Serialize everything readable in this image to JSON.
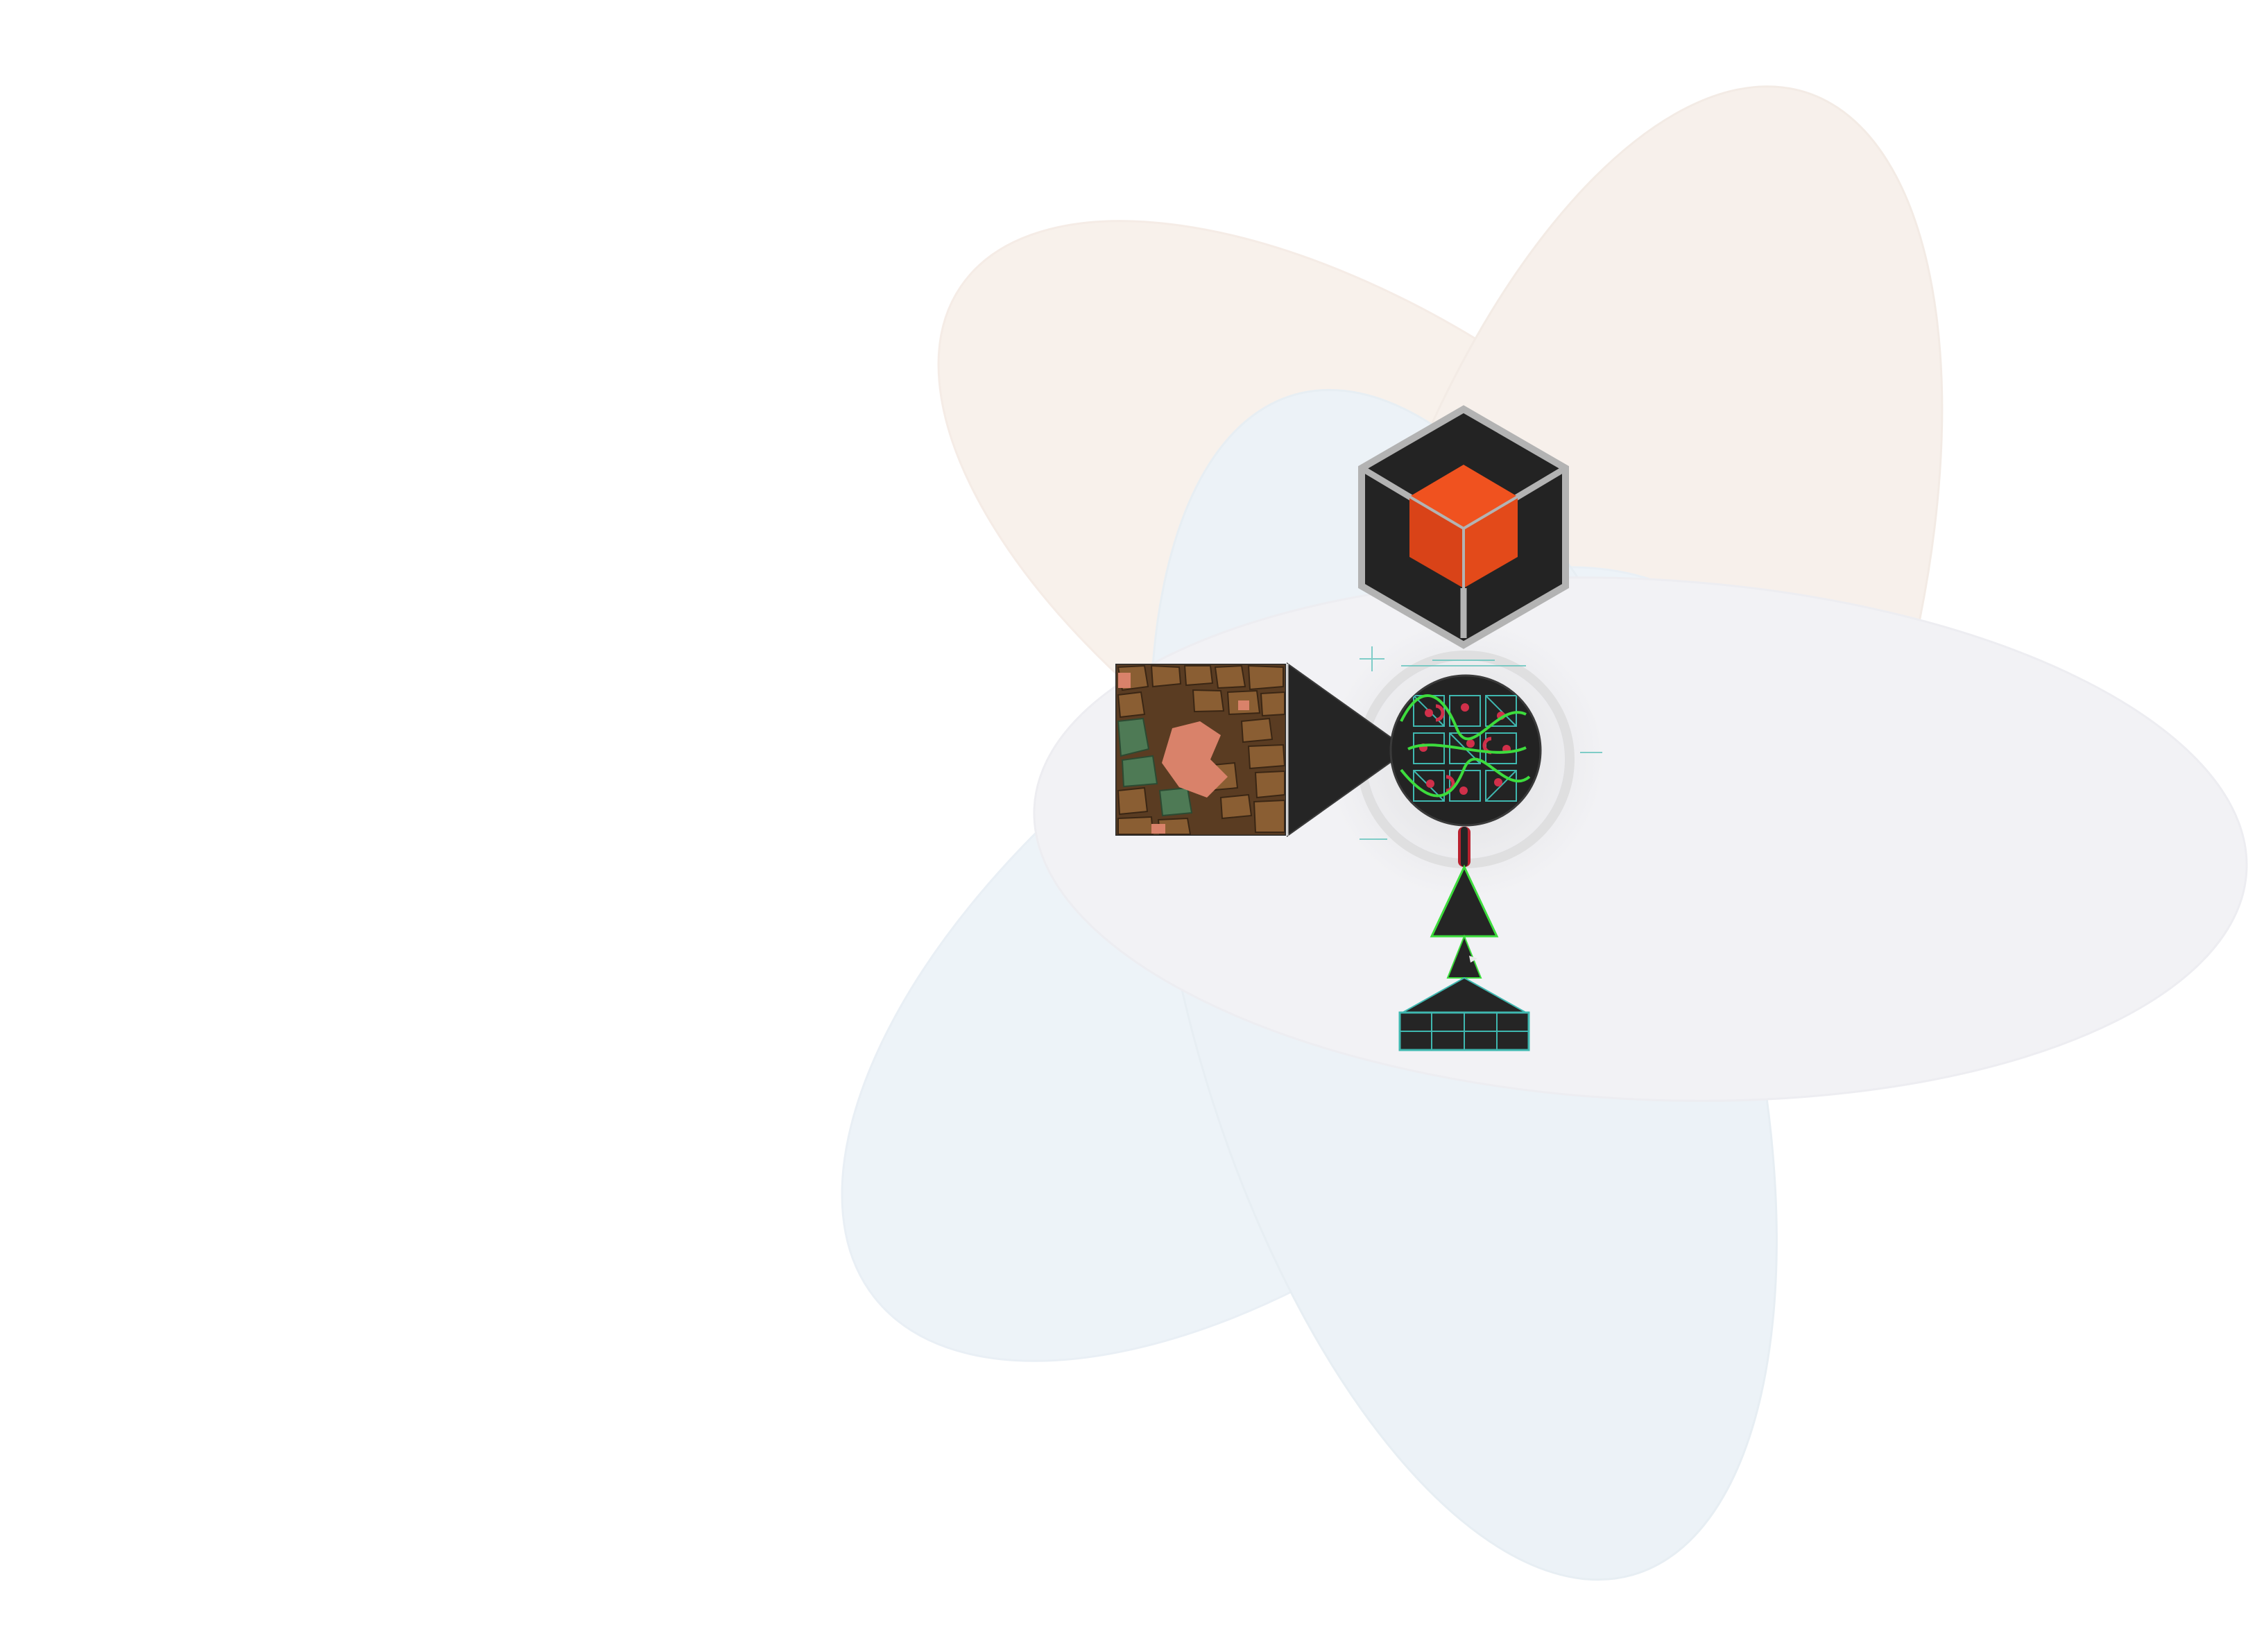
{
  "colors": {
    "background": "#ffffff",
    "petal_warm": "#f3e6dc",
    "petal_cool": "#dce8f2",
    "petal_neutral": "#e4e4ea",
    "dark_fill": "#252525",
    "cube_orange": "#e04a1c",
    "cube_gray": "#b9b9b9",
    "neon_green": "#3ddc3d",
    "teal": "#3fb8b0",
    "magenta": "#d0304a",
    "map_brown": "#6e4a2c",
    "map_salmon": "#d9826a"
  },
  "icons": [
    "petal-shape",
    "cube-hexagon-icon",
    "city-map-image",
    "arrow-triangle-icon",
    "circuit-circle-icon",
    "connector-pin-icon",
    "green-triangle-icon",
    "grid-pedestal-icon"
  ]
}
